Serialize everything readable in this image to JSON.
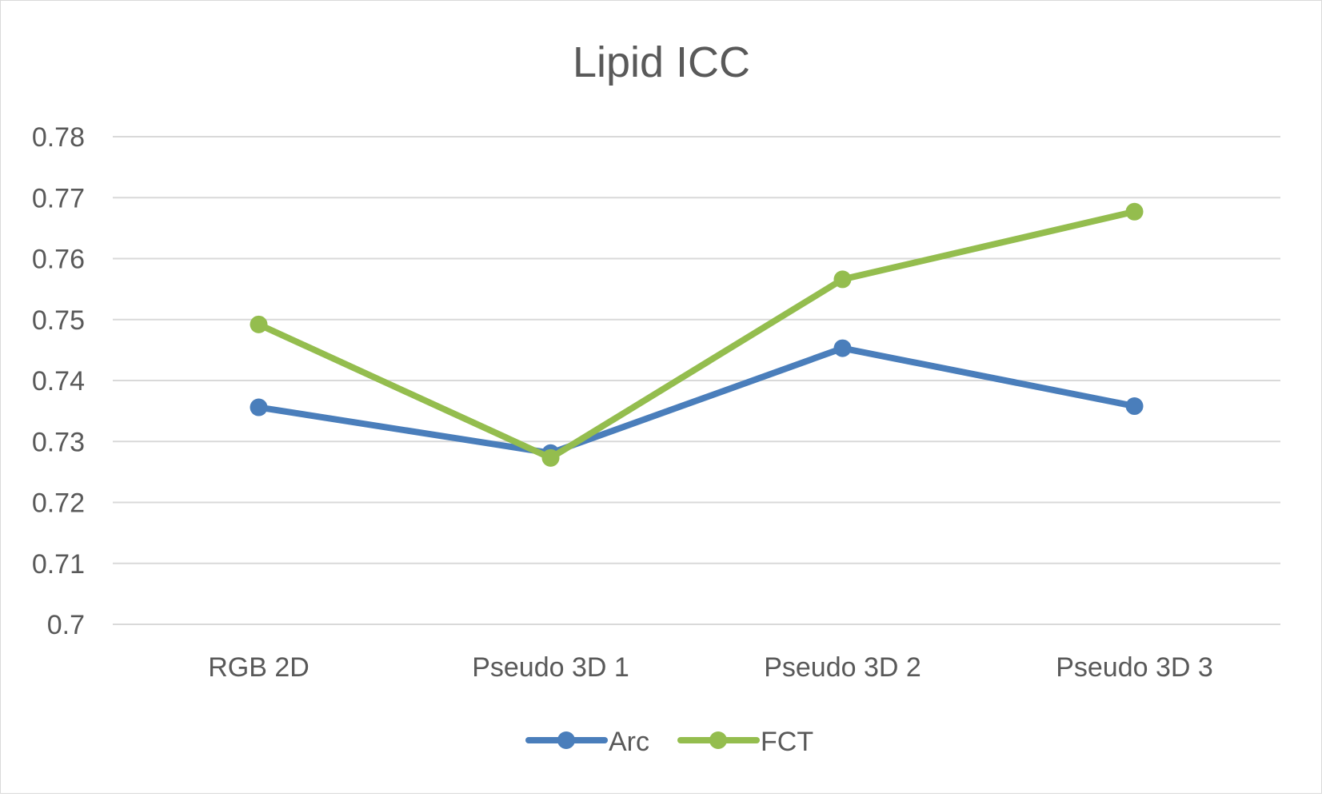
{
  "chart_data": {
    "type": "line",
    "title": "Lipid ICC",
    "xlabel": "",
    "ylabel": "",
    "categories": [
      "RGB 2D",
      "Pseudo 3D 1",
      "Pseudo 3D 2",
      "Pseudo 3D 3"
    ],
    "ylim": [
      0.7,
      0.78
    ],
    "y_ticks": [
      "0.7",
      "0.71",
      "0.72",
      "0.73",
      "0.74",
      "0.75",
      "0.76",
      "0.77",
      "0.78"
    ],
    "grid": true,
    "legend_position": "bottom",
    "series": [
      {
        "name": "Arc",
        "color": "#4a7ebb",
        "values": [
          0.7356,
          0.7281,
          0.7453,
          0.7358
        ]
      },
      {
        "name": "FCT",
        "color": "#94bd4e",
        "values": [
          0.7492,
          0.7273,
          0.7566,
          0.7677
        ]
      }
    ]
  }
}
